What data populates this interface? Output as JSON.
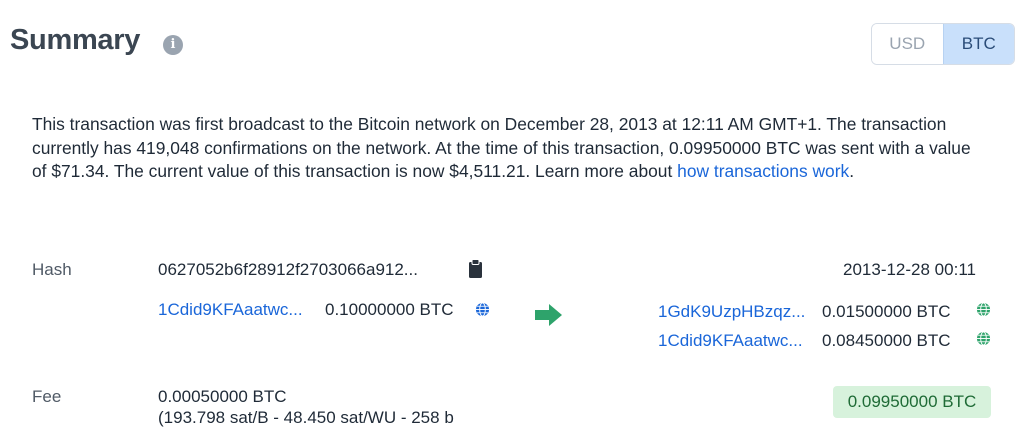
{
  "summary": {
    "title": "Summary",
    "info_icon": "i",
    "currency": {
      "usd": "USD",
      "btc": "BTC",
      "selected": "BTC"
    },
    "text_before": "This transaction was first broadcast to the Bitcoin network on December 28, 2013 at 12:11 AM GMT+1.  The transaction currently has 419,048 confirmations on the network.  At the time of this transaction, 0.09950000 BTC was sent with a value of $71.34. The current value of this transaction is now $4,511.21.  Learn more about ",
    "learn_link": "how transactions work",
    "text_after": "."
  },
  "tx": {
    "hash_label": "Hash",
    "hash": "0627052b6f28912f2703066a912...",
    "timestamp": "2013-12-28 00:11",
    "input": {
      "address": "1Cdid9KFAaatwc...",
      "amount": "0.10000000 BTC"
    },
    "outputs": [
      {
        "address": "1GdK9UzpHBzqz...",
        "amount": "0.01500000 BTC"
      },
      {
        "address": "1Cdid9KFAaatwc...",
        "amount": "0.08450000 BTC"
      }
    ],
    "fee_label": "Fee",
    "fee": "0.00050000 BTC",
    "fee_detail": "(193.798 sat/B - 48.450 sat/WU - 258 b",
    "total": "0.09950000 BTC"
  },
  "colors": {
    "link": "#1a66d9",
    "arrow": "#2ea36b",
    "badge_bg": "#d7f2dc",
    "toggle_selected_bg": "#c9e0fb",
    "globe_input": "#1a66d9",
    "globe_output": "#2ea36b"
  },
  "icons": {
    "info": "info-icon",
    "copy": "clipboard-icon",
    "arrow": "arrow-right-icon",
    "globe": "globe-icon"
  }
}
